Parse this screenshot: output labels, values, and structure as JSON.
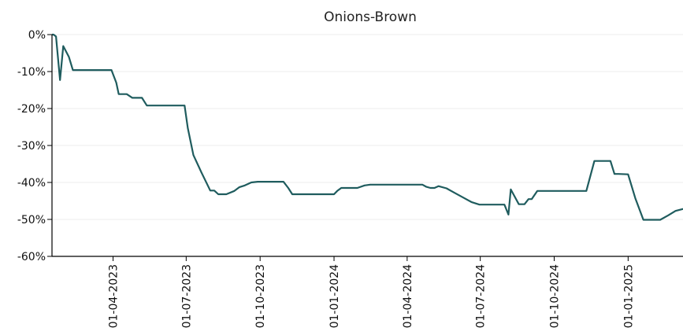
{
  "chart_data": {
    "type": "line",
    "title": "Onions-Brown",
    "xlabel": "",
    "ylabel": "",
    "y_format": "percent",
    "ylim": [
      -60,
      0
    ],
    "y_ticks": [
      0,
      -10,
      -20,
      -30,
      -40,
      -50,
      -60
    ],
    "y_tick_labels": [
      "0%",
      "-10%",
      "-20%",
      "-30%",
      "-40%",
      "-50%",
      "-60%"
    ],
    "xlim": [
      "2023-01-15",
      "2025-03-15"
    ],
    "x_ticks": [
      "2023-04-01",
      "2023-07-01",
      "2023-10-01",
      "2024-01-01",
      "2024-04-01",
      "2024-07-01",
      "2024-10-01",
      "2025-01-01"
    ],
    "x_tick_labels": [
      "01-04-2023",
      "01-07-2023",
      "01-10-2023",
      "01-01-2024",
      "01-04-2024",
      "01-07-2024",
      "01-10-2024",
      "01-01-2025"
    ],
    "grid": true,
    "line_color": "#1f5c5e",
    "series": [
      {
        "x": [
          "2023-01-15",
          "2023-01-17",
          "2023-01-20",
          "2023-01-25",
          "2023-01-29",
          "2023-02-05",
          "2023-02-10",
          "2023-02-15",
          "2023-02-20",
          "2023-02-25",
          "2023-03-01",
          "2023-03-05",
          "2023-03-10",
          "2023-03-17",
          "2023-03-24",
          "2023-03-30",
          "2023-04-05",
          "2023-04-08",
          "2023-04-12",
          "2023-04-18",
          "2023-04-25",
          "2023-05-01",
          "2023-05-07",
          "2023-05-13",
          "2023-05-18",
          "2023-05-25",
          "2023-06-01",
          "2023-06-08",
          "2023-06-15",
          "2023-06-22",
          "2023-06-29",
          "2023-07-03",
          "2023-07-10",
          "2023-07-20",
          "2023-07-31",
          "2023-08-05",
          "2023-08-10",
          "2023-08-20",
          "2023-08-30",
          "2023-09-05",
          "2023-09-12",
          "2023-09-20",
          "2023-09-28",
          "2023-10-03",
          "2023-10-10",
          "2023-10-20",
          "2023-10-30",
          "2023-11-05",
          "2023-11-10",
          "2023-11-20",
          "2023-12-01",
          "2023-12-05",
          "2023-12-10",
          "2023-12-20",
          "2024-01-01",
          "2024-01-05",
          "2024-01-10",
          "2024-01-15",
          "2024-01-20",
          "2024-01-30",
          "2024-02-08",
          "2024-02-15",
          "2024-02-20",
          "2024-02-29",
          "2024-03-10",
          "2024-03-20",
          "2024-03-31",
          "2024-04-05",
          "2024-04-10",
          "2024-04-15",
          "2024-04-20",
          "2024-04-25",
          "2024-04-30",
          "2024-05-05",
          "2024-05-10",
          "2024-05-20",
          "2024-05-30",
          "2024-06-10",
          "2024-06-20",
          "2024-06-30",
          "2024-07-10",
          "2024-07-20",
          "2024-07-31",
          "2024-08-05",
          "2024-08-08",
          "2024-08-18",
          "2024-08-25",
          "2024-08-30",
          "2024-09-03",
          "2024-09-10",
          "2024-09-15",
          "2024-09-20",
          "2024-09-30",
          "2024-10-10",
          "2024-10-20",
          "2024-10-31",
          "2024-11-10",
          "2024-11-20",
          "2024-11-30",
          "2024-12-03",
          "2024-12-10",
          "2024-12-15",
          "2024-12-20",
          "2025-01-01",
          "2025-01-10",
          "2025-01-20",
          "2025-01-30",
          "2025-02-10",
          "2025-02-20",
          "2025-03-01",
          "2025-03-10",
          "2025-03-15"
        ],
        "y": [
          0,
          0,
          -0.5,
          -12.3,
          -3.1,
          -6.0,
          -9.6,
          -9.6,
          -9.6,
          -9.6,
          -9.6,
          -9.6,
          -9.6,
          -9.6,
          -9.6,
          -9.6,
          -13.0,
          -16.1,
          -16.1,
          -16.1,
          -17.1,
          -17.1,
          -17.1,
          -19.2,
          -19.2,
          -19.2,
          -19.2,
          -19.2,
          -19.2,
          -19.2,
          -19.2,
          -25.3,
          -32.6,
          -37.3,
          -42.2,
          -42.2,
          -43.2,
          -43.2,
          -42.3,
          -41.3,
          -40.8,
          -40.0,
          -39.8,
          -39.8,
          -39.8,
          -39.8,
          -39.8,
          -41.5,
          -43.2,
          -43.2,
          -43.2,
          -43.2,
          -43.2,
          -43.2,
          -43.2,
          -42.3,
          -41.5,
          -41.5,
          -41.5,
          -41.5,
          -40.8,
          -40.6,
          -40.6,
          -40.6,
          -40.6,
          -40.6,
          -40.6,
          -40.6,
          -40.6,
          -40.6,
          -40.6,
          -41.2,
          -41.5,
          -41.5,
          -41.0,
          -41.6,
          -42.8,
          -44.1,
          -45.3,
          -46.0,
          -46.0,
          -46.0,
          -46.0,
          -48.7,
          -41.9,
          -45.9,
          -45.9,
          -44.5,
          -44.5,
          -42.3,
          -42.3,
          -42.3,
          -42.3,
          -42.3,
          -42.3,
          -42.3,
          -42.3,
          -34.2,
          -34.2,
          -34.2,
          -34.2,
          -37.7,
          -37.7,
          -37.8,
          -44.3,
          -50.1,
          -50.1,
          -50.1,
          -48.9,
          -47.7,
          -47.2,
          -47.2
        ]
      }
    ]
  }
}
